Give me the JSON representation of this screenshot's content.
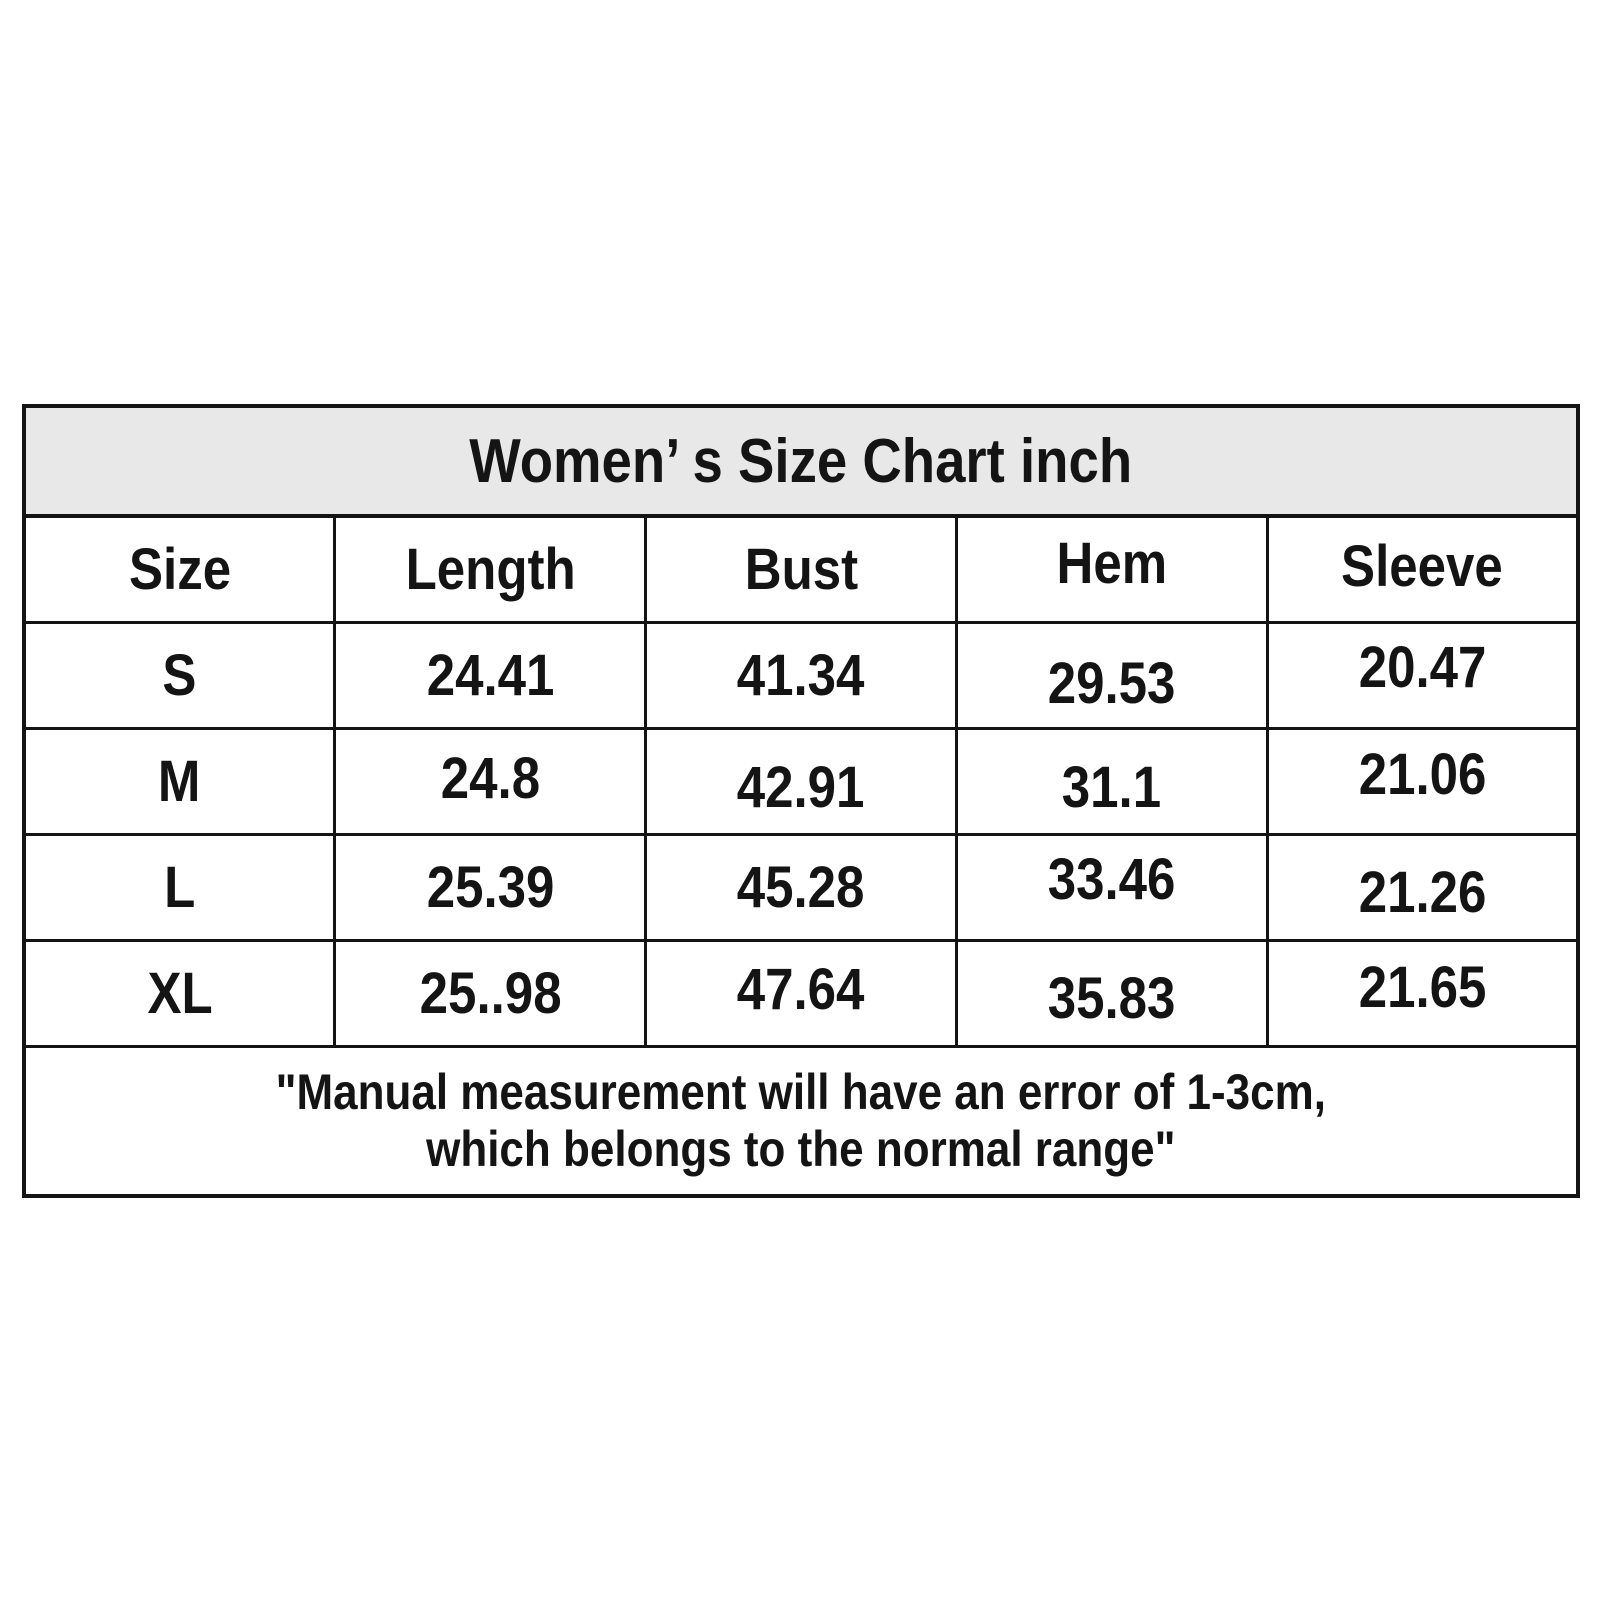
{
  "chart_data": {
    "type": "table",
    "title": "Women’ s Size Chart inch",
    "columns": [
      "Size",
      "Length",
      "Bust",
      "Hem",
      "Sleeve"
    ],
    "rows": [
      [
        "S",
        "24.41",
        "41.34",
        "29.53",
        "20.47"
      ],
      [
        "M",
        "24.8",
        "42.91",
        "31.1",
        "21.06"
      ],
      [
        "L",
        "25.39",
        "45.28",
        "33.46",
        "21.26"
      ],
      [
        "XL",
        "25..98",
        "47.64",
        "35.83",
        "21.65"
      ]
    ],
    "note_lines": [
      "\"Manual measurement will have an error of 1-3cm,",
      "which belongs to the normal range\""
    ],
    "layout_hints": "title band gray, 5 equal columns, note row spans all columns"
  },
  "colors": {
    "title_band_bg": "#e8e8e8",
    "border": "#141414",
    "text": "#141414",
    "page_bg": "#ffffff"
  }
}
